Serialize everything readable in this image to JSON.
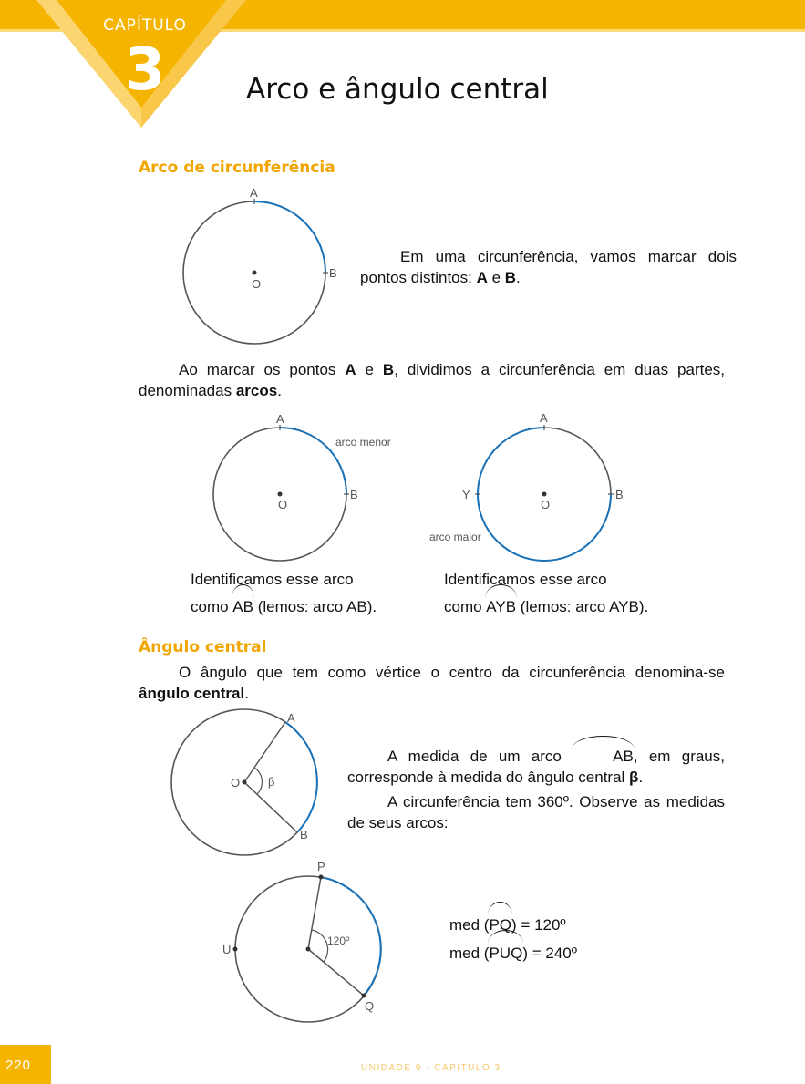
{
  "header": {
    "chapter_label": "CAPÍTULO",
    "chapter_number": "3",
    "title": "Arco e ângulo central"
  },
  "section1": {
    "title": "Arco de circunferência",
    "fig1": {
      "point_a": "A",
      "point_b": "B",
      "center": "O"
    },
    "intro": {
      "text1": "Em uma circunferência, vamos marcar dois pontos distintos: ",
      "a": "A",
      "and": " e ",
      "b": "B",
      "end": "."
    },
    "para2": {
      "t1": "Ao marcar os pontos ",
      "a": "A",
      "and": " e ",
      "b": "B",
      "t2": ", dividimos a circunferência em duas partes, denominadas ",
      "arcos": "arcos",
      "end": "."
    },
    "fig2": {
      "point_a": "A",
      "point_b": "B",
      "center": "O",
      "arc_label": "arco menor"
    },
    "fig3": {
      "point_a": "A",
      "point_b": "B",
      "point_y": "Y",
      "center": "O",
      "arc_label": "arco maior"
    },
    "caption2": {
      "line1": "Identificamos esse arco",
      "como": "como ",
      "arc": "AB",
      "rest": " (lemos: arco AB)."
    },
    "caption3": {
      "line1": "Identificamos esse arco",
      "como": "como ",
      "arc": "AYB",
      "rest": " (lemos: arco AYB)."
    }
  },
  "section2": {
    "title": "Ângulo central",
    "def": {
      "t1": "O ângulo que tem como vértice o centro da circunferência denomina-se ",
      "bold": "ângulo central",
      "end": "."
    },
    "fig4": {
      "point_a": "A",
      "point_b": "B",
      "center": "O",
      "angle": "β"
    },
    "p1": {
      "t1": "A medida de um arco ",
      "arc": "AB",
      "t2": ", em graus, corresponde à medida do ângulo central ",
      "beta": "β",
      "end": "."
    },
    "p2": "A circunferência tem 360º. Observe as medidas de seus arcos:",
    "fig5": {
      "point_p": "P",
      "point_q": "Q",
      "point_u": "U",
      "angle": "120º"
    },
    "med1": {
      "prefix": "med (",
      "arc": "PQ",
      "suffix": ") = 120º"
    },
    "med2": {
      "prefix": "med (",
      "arc": "PUQ",
      "suffix": ") = 240º"
    }
  },
  "footer": {
    "page_number": "220",
    "running_text": "UNIDADE 9  -  CAPÍTULO 3"
  },
  "colors": {
    "accent": "#F5B400",
    "arc_blue": "#1A73B8",
    "heading": "#F0A500"
  }
}
